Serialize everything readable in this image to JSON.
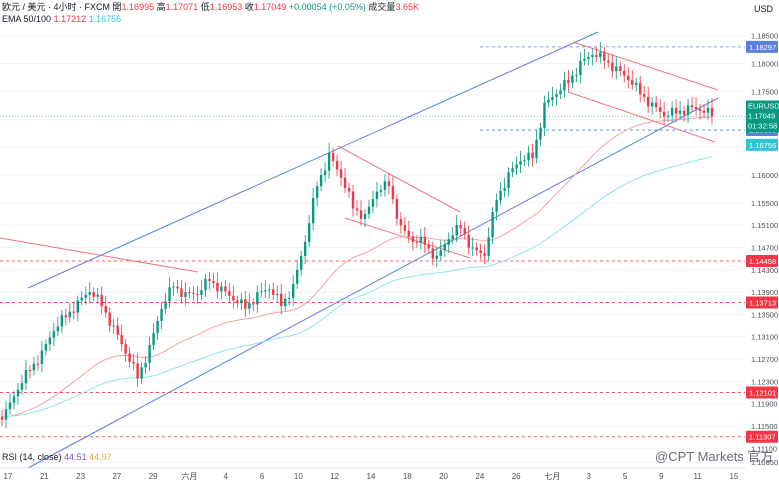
{
  "header": {
    "symbol_line": "欧元 / 美元 · 4小时 · FXCM",
    "open_label": "開",
    "open": "1.16995",
    "high_label": "高",
    "high": "1.17071",
    "low_label": "低",
    "low": "1.16953",
    "close_label": "收",
    "close": "1.17049",
    "change": "+0.00054 (+0.05%)",
    "volume_label": "成交量",
    "volume": "3.65K",
    "ema_label": "EMA 50/100",
    "ema50": "1.17212",
    "ema100": "1.16756",
    "currency": "USD"
  },
  "rsi": {
    "label": "RSI (14, close)",
    "v1": "44.51",
    "v2": "44.97"
  },
  "watermark": "@CPT Markets 官方",
  "colors": {
    "up": "#089981",
    "down": "#f23645",
    "channel": "#5b7fe0",
    "resistance": "#f0747c",
    "ema50": "#f2a3a3",
    "ema100": "#8fe4ee"
  },
  "chart_data": {
    "type": "candlestick",
    "symbol": "EURUSD",
    "timeframe": "4H",
    "ylim": [
      1.108,
      1.186
    ],
    "y_ticks": [
      "1.18500",
      "1.18000",
      "1.17500",
      "1.17000",
      "1.16500",
      "1.16000",
      "1.15500",
      "1.15100",
      "1.14700",
      "1.14300",
      "1.13900",
      "1.13500",
      "1.13100",
      "1.12700",
      "1.12300",
      "1.11900",
      "1.11500",
      "1.11100",
      "1.10850"
    ],
    "x_ticks": [
      "17",
      "21",
      "23",
      "27",
      "29",
      "六月",
      "4",
      "6",
      "10",
      "12",
      "14",
      "18",
      "20",
      "24",
      "26",
      "七月",
      "3",
      "5",
      "9",
      "11",
      "15"
    ],
    "price_tag": {
      "symbol": "EURUSD",
      "price": "1.17049",
      "timer": "01:32:58"
    },
    "levels": [
      {
        "value": "1.18297",
        "style": "dashed-blue"
      },
      {
        "value": "1.16806",
        "style": "dashed-blue"
      },
      {
        "value": "1.14458",
        "style": "dashed-red"
      },
      {
        "value": "1.13713",
        "style": "dashed-red"
      },
      {
        "value": "1.12101",
        "style": "dashed-red"
      },
      {
        "value": "1.11307",
        "style": "dashed-red"
      }
    ],
    "ema_tags": {
      "ema50": "1.17212",
      "ema100": "1.16756"
    },
    "close_path": [
      1.118,
      1.1215,
      1.125,
      1.1285,
      1.132,
      1.1345,
      1.1375,
      1.139,
      1.1365,
      1.133,
      1.128,
      1.1235,
      1.1295,
      1.136,
      1.14,
      1.139,
      1.1385,
      1.141,
      1.14,
      1.1375,
      1.136,
      1.139,
      1.1395,
      1.1365,
      1.1405,
      1.148,
      1.158,
      1.164,
      1.1595,
      1.154,
      1.153,
      1.157,
      1.158,
      1.151,
      1.148,
      1.1475,
      1.1455,
      1.1485,
      1.1505,
      1.147,
      1.1455,
      1.1555,
      1.1605,
      1.1625,
      1.163,
      1.173,
      1.1745,
      1.1765,
      1.1805,
      1.1815,
      1.1805,
      1.1795,
      1.177,
      1.1745,
      1.173,
      1.1705,
      1.171,
      1.1725,
      1.1715,
      1.1705
    ]
  }
}
